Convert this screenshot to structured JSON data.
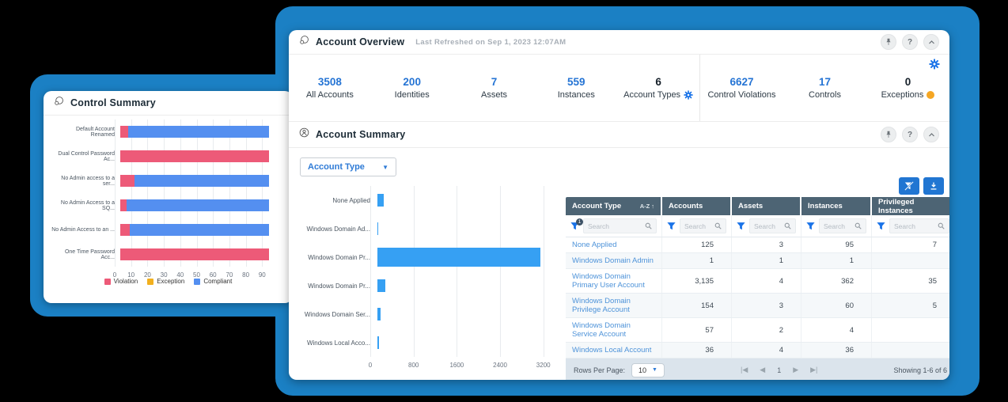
{
  "colors": {
    "backdrop": "#1b80c4",
    "accent_blue": "#2574d4",
    "bar_blue": "#36a0f3",
    "violation_red": "#ed5a78",
    "exception_amber": "#f2b01e",
    "compliant_blue": "#548ff0",
    "table_header": "#4d6474",
    "badge_orange": "#f5a623"
  },
  "control_summary": {
    "title": "Control Summary",
    "chart_data": {
      "type": "bar",
      "orientation": "horizontal",
      "stacked": true,
      "categories": [
        "Default Account Renamed",
        "Dual Control Password Ac...",
        "No Admin access to a ser...",
        "No Admin Access to a SQ...",
        "No Admin Access to an ...",
        "One Time Password Acc..."
      ],
      "series": [
        {
          "name": "Violation",
          "color": "#ed5a78",
          "values": [
            5,
            94,
            9,
            4,
            6,
            94
          ]
        },
        {
          "name": "Exception",
          "color": "#f2b01e",
          "values": [
            0,
            0,
            0,
            0,
            0,
            0
          ]
        },
        {
          "name": "Compliant",
          "color": "#548ff0",
          "values": [
            89,
            0,
            85,
            90,
            88,
            0
          ]
        }
      ],
      "xticks": [
        0,
        10,
        20,
        30,
        40,
        50,
        60,
        70,
        80,
        90
      ],
      "xlim": [
        0,
        100
      ],
      "legend_position": "bottom"
    }
  },
  "account_overview": {
    "title": "Account Overview",
    "last_refreshed": "Last Refreshed on Sep 1, 2023 12:07AM",
    "help_label": "?",
    "stats_left": [
      {
        "value": "3508",
        "label": "All Accounts"
      },
      {
        "value": "200",
        "label": "Identities"
      },
      {
        "value": "7",
        "label": "Assets"
      },
      {
        "value": "559",
        "label": "Instances"
      },
      {
        "value": "6",
        "label": "Account Types",
        "dark": true,
        "gear": true
      }
    ],
    "stats_right": [
      {
        "value": "6627",
        "label": "Control Violations"
      },
      {
        "value": "17",
        "label": "Controls"
      },
      {
        "value": "0",
        "label": "Exceptions",
        "dark": true,
        "badge": true
      }
    ]
  },
  "account_summary": {
    "title": "Account Summary",
    "dropdown_value": "Account Type",
    "chart_data": {
      "type": "bar",
      "orientation": "horizontal",
      "categories": [
        "None Applied",
        "Windows Domain Ad...",
        "Windows Domain Pr...",
        "Windows Domain Pr...",
        "Windows Domain Ser...",
        "Windows Local Acco..."
      ],
      "values": [
        125,
        1,
        3135,
        154,
        57,
        36
      ],
      "xticks": [
        0,
        800,
        1600,
        2400,
        3200
      ],
      "xlim": [
        0,
        3380
      ]
    },
    "table": {
      "columns": [
        "Account Type",
        "Accounts",
        "Assets",
        "Instances",
        "Privileged Instances"
      ],
      "sort_label": "A-Z",
      "filter_badge": "1",
      "search_placeholder": "Search",
      "rows": [
        {
          "account_type": "None Applied",
          "accounts": "125",
          "assets": "3",
          "instances": "95",
          "privileged": "7"
        },
        {
          "account_type": "Windows Domain Admin",
          "accounts": "1",
          "assets": "1",
          "instances": "1",
          "privileged": ""
        },
        {
          "account_type": "Windows Domain Primary User Account",
          "accounts": "3,135",
          "assets": "4",
          "instances": "362",
          "privileged": "35"
        },
        {
          "account_type": "Windows Domain Privilege Account",
          "accounts": "154",
          "assets": "3",
          "instances": "60",
          "privileged": "5"
        },
        {
          "account_type": "Windows Domain Service Account",
          "accounts": "57",
          "assets": "2",
          "instances": "4",
          "privileged": ""
        },
        {
          "account_type": "Windows Local Account",
          "accounts": "36",
          "assets": "4",
          "instances": "36",
          "privileged": ""
        }
      ],
      "footer": {
        "rows_per_page_label": "Rows Per Page:",
        "rows_per_page_value": "10",
        "page": "1",
        "showing": "Showing 1-6 of 6"
      }
    }
  }
}
